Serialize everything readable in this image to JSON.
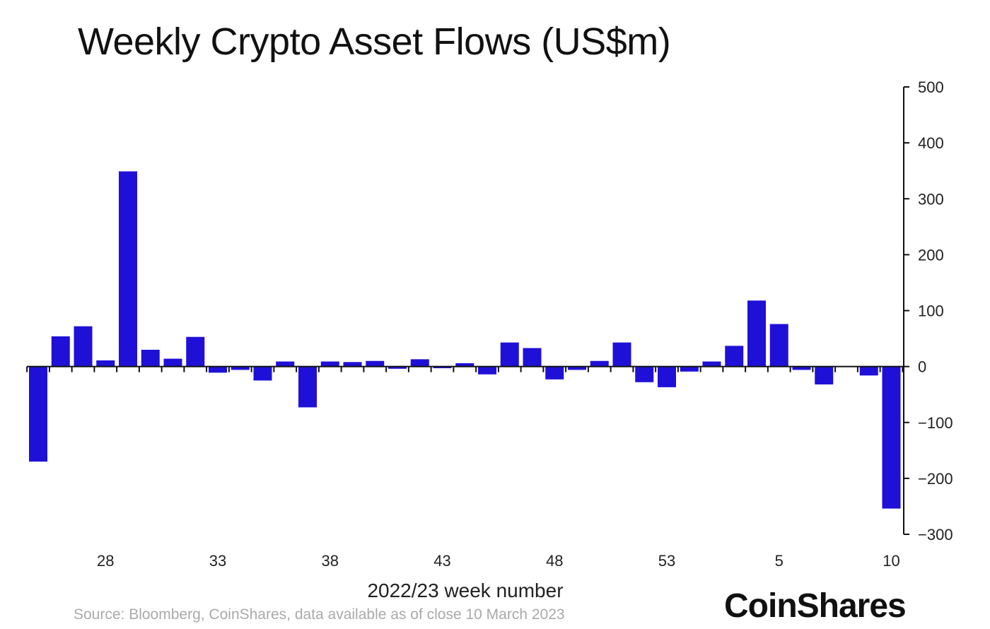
{
  "chart_data": {
    "type": "bar",
    "title": "Weekly Crypto Asset Flows (US$m)",
    "xlabel": "2022/23 week number",
    "ylabel": "",
    "ylim": [
      -300,
      500
    ],
    "yticks": [
      500,
      400,
      300,
      200,
      100,
      0,
      -100,
      -200,
      -300
    ],
    "y_axis_position": "right",
    "grid": false,
    "categories": [
      "25",
      "26",
      "27",
      "28",
      "29",
      "30",
      "31",
      "32",
      "33",
      "34",
      "35",
      "36",
      "37",
      "38",
      "39",
      "40",
      "41",
      "42",
      "43",
      "44",
      "45",
      "46",
      "47",
      "48",
      "49",
      "50",
      "51",
      "52",
      "53",
      "1",
      "2",
      "3",
      "4",
      "5",
      "6",
      "7",
      "8",
      "9",
      "10"
    ],
    "xtick_labels": [
      "28",
      "33",
      "38",
      "43",
      "48",
      "53",
      "5",
      "10"
    ],
    "values": [
      -170,
      54,
      72,
      11,
      349,
      30,
      14,
      53,
      -11,
      -6,
      -25,
      9,
      -73,
      9,
      8,
      10,
      -4,
      13,
      -3,
      6,
      -14,
      43,
      33,
      -23,
      -6,
      10,
      43,
      -28,
      -37,
      -9,
      9,
      37,
      118,
      76,
      -6,
      -32,
      -1,
      -16,
      -254
    ],
    "bar_color": "#1f10d8"
  },
  "source": "Source: Bloomberg, CoinShares, data available as of close 10 March 2023",
  "logo": "CoinShares"
}
